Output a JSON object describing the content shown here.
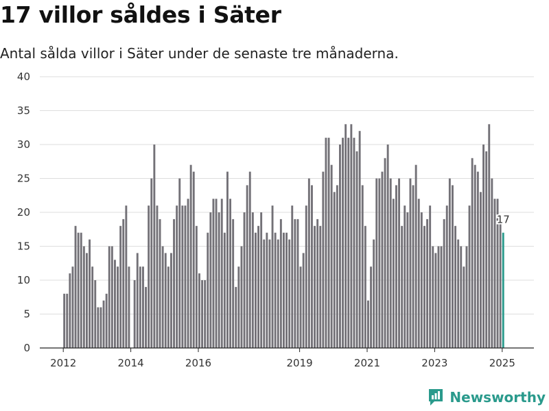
{
  "title": "17 villor såldes i Säter",
  "subtitle": "Antal sålda villor i Säter under de senaste tre månaderna.",
  "brand": "Newsworthy",
  "colors": {
    "bar": "#737177",
    "highlight": "#2a9a8c",
    "grid": "#dddddd",
    "axis": "#222222"
  },
  "chart_data": {
    "type": "bar",
    "ylim": [
      0,
      40
    ],
    "yticks": [
      0,
      5,
      10,
      15,
      20,
      25,
      30,
      35,
      40
    ],
    "xticks": [
      "2012",
      "2014",
      "2016",
      "2019",
      "2021",
      "2023",
      "2025"
    ],
    "grid": true,
    "highlight_label": "17",
    "values": [
      8,
      8,
      11,
      12,
      18,
      17,
      17,
      15,
      14,
      16,
      12,
      10,
      6,
      6,
      7,
      8,
      15,
      15,
      13,
      12,
      18,
      19,
      21,
      12,
      0,
      10,
      14,
      12,
      12,
      9,
      21,
      25,
      30,
      21,
      19,
      15,
      14,
      12,
      14,
      19,
      21,
      25,
      21,
      21,
      22,
      27,
      26,
      18,
      11,
      10,
      10,
      17,
      20,
      22,
      22,
      20,
      22,
      17,
      26,
      22,
      19,
      9,
      12,
      15,
      20,
      24,
      26,
      20,
      17,
      18,
      20,
      16,
      17,
      16,
      21,
      17,
      16,
      19,
      17,
      17,
      16,
      21,
      19,
      19,
      12,
      14,
      21,
      25,
      24,
      18,
      19,
      18,
      26,
      31,
      31,
      27,
      23,
      24,
      30,
      31,
      33,
      31,
      33,
      31,
      29,
      32,
      24,
      18,
      7,
      12,
      16,
      25,
      25,
      26,
      28,
      30,
      25,
      22,
      24,
      25,
      18,
      21,
      20,
      25,
      24,
      27,
      22,
      20,
      18,
      19,
      21,
      15,
      14,
      15,
      15,
      19,
      21,
      25,
      24,
      18,
      16,
      15,
      12,
      15,
      21,
      28,
      27,
      26,
      23,
      30,
      29,
      33,
      25,
      22,
      22,
      19,
      17
    ]
  }
}
